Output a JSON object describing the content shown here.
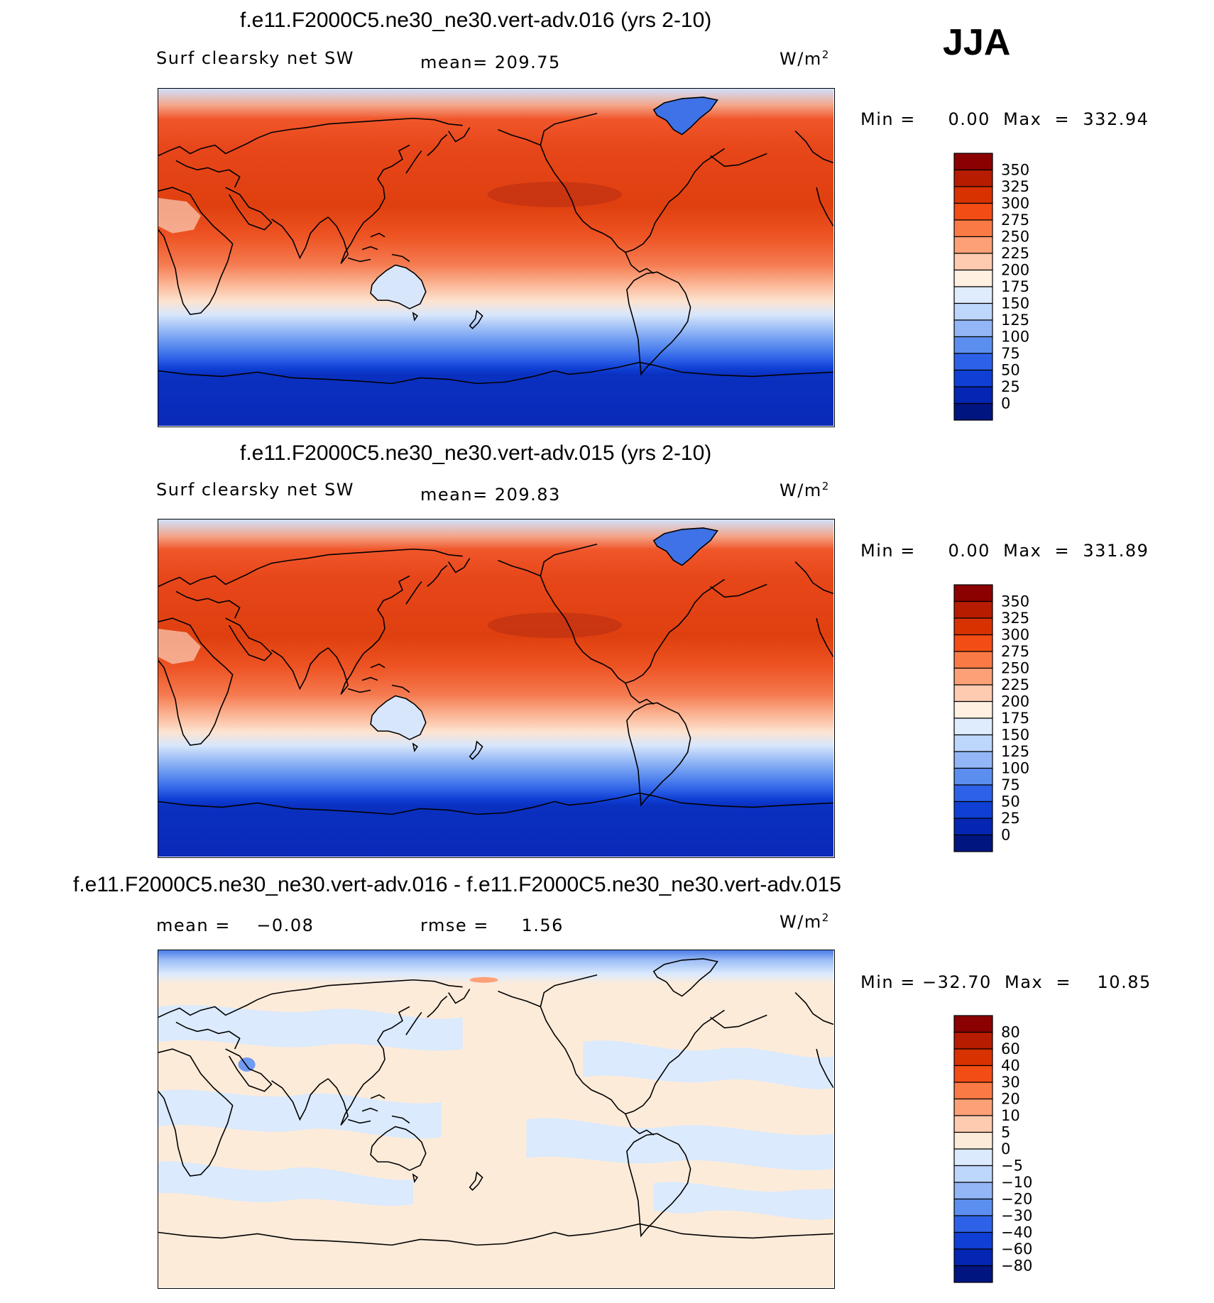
{
  "season": "JJA",
  "units": "W/m",
  "units_sup": "2",
  "panels": [
    {
      "title": "f.e11.F2000C5.ne30_ne30.vert-adv.016 (yrs 2-10)",
      "variable": "Surf clearsky net SW",
      "mean_text": "mean= 209.75",
      "range_text": "Min =     0.00  Max  =  332.94",
      "min": 0.0,
      "max": 332.94
    },
    {
      "title": "f.e11.F2000C5.ne30_ne30.vert-adv.015 (yrs 2-10)",
      "variable": "Surf clearsky net SW",
      "mean_text": "mean= 209.83",
      "range_text": "Min =     0.00  Max  =  331.89",
      "min": 0.0,
      "max": 331.89
    },
    {
      "title": "f.e11.F2000C5.ne30_ne30.vert-adv.016 - f.e11.F2000C5.ne30_ne30.vert-adv.015",
      "mean_text": "mean =    −0.08",
      "rmse_text": "rmse =     1.56",
      "range_text": "Min = −32.70  Max  =    10.85",
      "min": -32.7,
      "max": 10.85
    }
  ],
  "colorbars": {
    "abs": {
      "levels": [
        "350",
        "325",
        "300",
        "275",
        "250",
        "225",
        "200",
        "175",
        "150",
        "125",
        "100",
        "75",
        "50",
        "25",
        "0"
      ],
      "colors": [
        "#8b0000",
        "#b71c00",
        "#d83200",
        "#f24d14",
        "#fa7a45",
        "#fca077",
        "#fecbb0",
        "#fff0e2",
        "#deecfd",
        "#bdd6fb",
        "#92b6f6",
        "#5c8ef0",
        "#2d62e8",
        "#0f3fd4",
        "#0426b2",
        "#001580"
      ]
    },
    "diff": {
      "levels": [
        "80",
        "60",
        "40",
        "30",
        "20",
        "10",
        "5",
        "0",
        "−5",
        "−10",
        "−20",
        "−30",
        "−40",
        "−60",
        "−80"
      ],
      "colors": [
        "#8b0000",
        "#b71c00",
        "#d83200",
        "#f24d14",
        "#fa7a45",
        "#fca077",
        "#fecbb0",
        "#fdebd9",
        "#dbeafd",
        "#bdd6fb",
        "#92b6f6",
        "#5c8ef0",
        "#2d62e8",
        "#0f3fd4",
        "#0426b2",
        "#001580"
      ]
    }
  }
}
